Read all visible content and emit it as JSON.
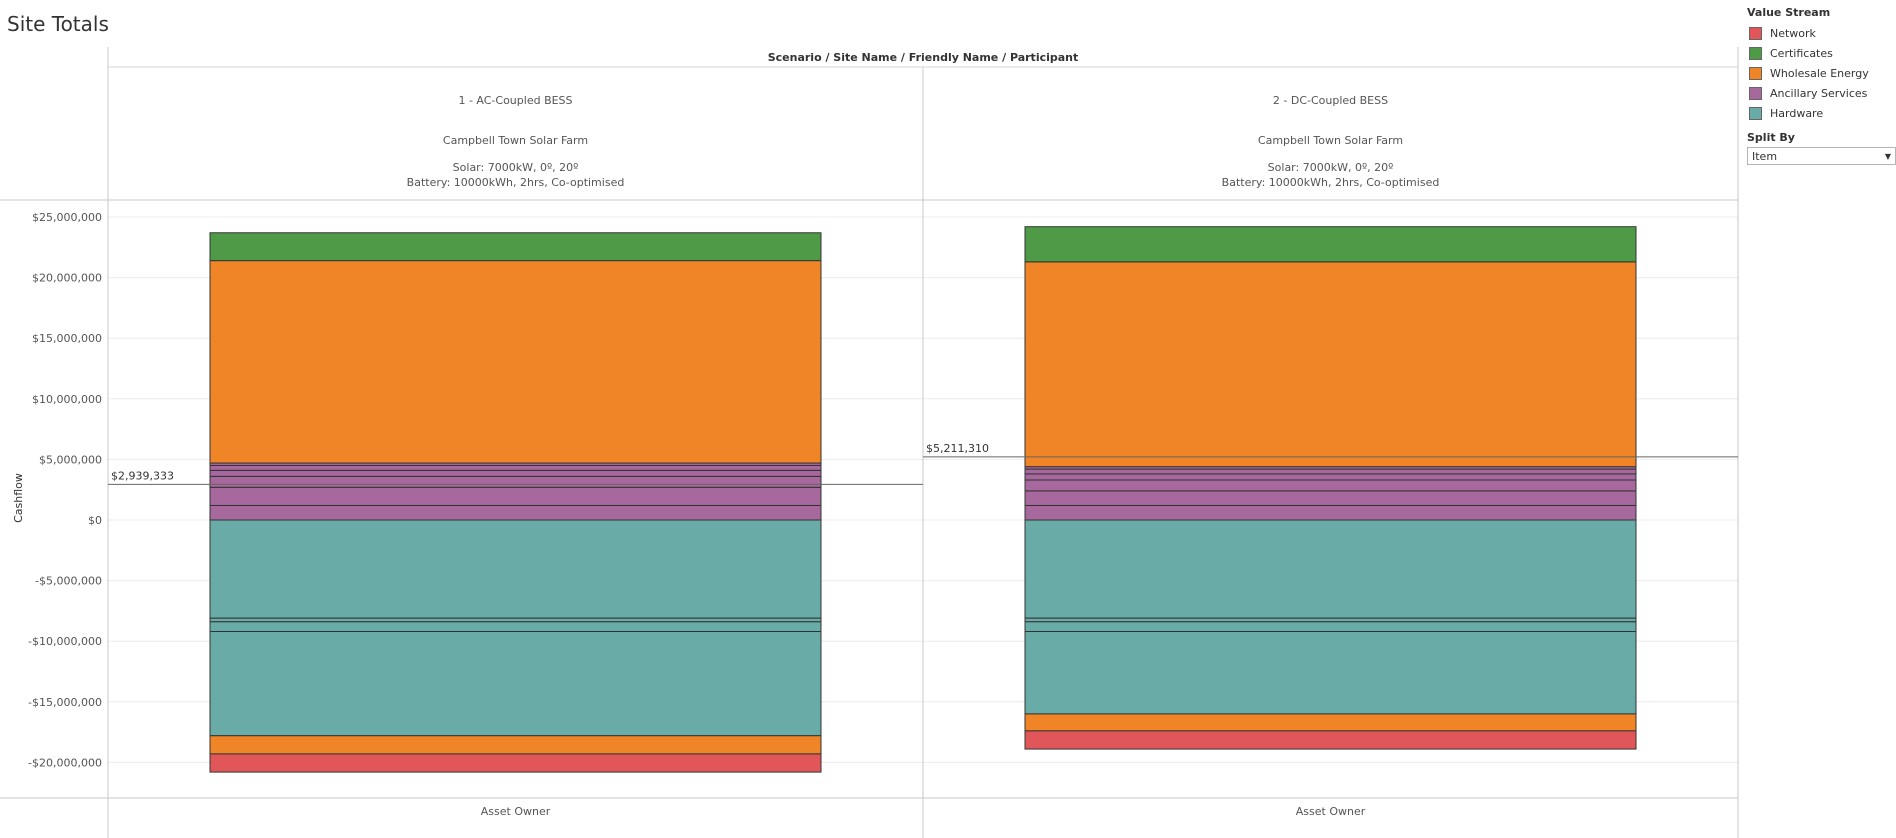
{
  "page_title": "Site Totals",
  "legend": {
    "title": "Value Stream",
    "items": [
      {
        "label": "Network",
        "color": "#e15759"
      },
      {
        "label": "Certificates",
        "color": "#4e9a47"
      },
      {
        "label": "Wholesale Energy",
        "color": "#f08527"
      },
      {
        "label": "Ancillary Services",
        "color": "#a7689e"
      },
      {
        "label": "Hardware",
        "color": "#69aca7"
      }
    ]
  },
  "split_by": {
    "label": "Split By",
    "value": "Item"
  },
  "chart_data": {
    "type": "bar",
    "stacked": true,
    "header_title": "Scenario / Site Name / Friendly Name / Participant",
    "ylabel": "Cashflow",
    "ylim": [
      -23000000,
      26000000
    ],
    "yticks": [
      25000000,
      20000000,
      15000000,
      10000000,
      5000000,
      0,
      -5000000,
      -10000000,
      -15000000,
      -20000000
    ],
    "ytick_labels": [
      "$25,000,000",
      "$20,000,000",
      "$15,000,000",
      "$10,000,000",
      "$5,000,000",
      "$0",
      "-$5,000,000",
      "-$10,000,000",
      "-$15,000,000",
      "-$20,000,000"
    ],
    "panels": [
      {
        "scenario": "1 - AC-Coupled BESS",
        "site": "Campbell Town Solar Farm",
        "friendly_line1": "Solar: 7000kW, 0º, 20º",
        "friendly_line2": "Battery: 10000kWh, 2hrs, Co-optimised",
        "participant": "Asset Owner",
        "total": 2939333,
        "total_label": "$2,939,333",
        "segments": [
          {
            "stream": "Ancillary Services",
            "start": 0,
            "end": 1200000
          },
          {
            "stream": "Ancillary Services",
            "start": 1200000,
            "end": 2700000
          },
          {
            "stream": "Ancillary Services",
            "start": 2700000,
            "end": 3600000
          },
          {
            "stream": "Ancillary Services",
            "start": 3600000,
            "end": 4100000
          },
          {
            "stream": "Ancillary Services",
            "start": 4100000,
            "end": 4500000
          },
          {
            "stream": "Ancillary Services",
            "start": 4500000,
            "end": 4700000
          },
          {
            "stream": "Wholesale Energy",
            "start": 4700000,
            "end": 21400000
          },
          {
            "stream": "Certificates",
            "start": 21400000,
            "end": 23700000
          },
          {
            "stream": "Hardware",
            "start": 0,
            "end": -8100000
          },
          {
            "stream": "Hardware",
            "start": -8100000,
            "end": -8400000
          },
          {
            "stream": "Hardware",
            "start": -8400000,
            "end": -9200000
          },
          {
            "stream": "Hardware",
            "start": -9200000,
            "end": -17800000
          },
          {
            "stream": "Wholesale Energy",
            "start": -17800000,
            "end": -19300000
          },
          {
            "stream": "Network",
            "start": -19300000,
            "end": -20800000
          }
        ]
      },
      {
        "scenario": "2 - DC-Coupled BESS",
        "site": "Campbell Town Solar Farm",
        "friendly_line1": "Solar: 7000kW, 0º, 20º",
        "friendly_line2": "Battery: 10000kWh, 2hrs, Co-optimised",
        "participant": "Asset Owner",
        "total": 5211310,
        "total_label": "$5,211,310",
        "segments": [
          {
            "stream": "Ancillary Services",
            "start": 0,
            "end": 1200000
          },
          {
            "stream": "Ancillary Services",
            "start": 1200000,
            "end": 2400000
          },
          {
            "stream": "Ancillary Services",
            "start": 2400000,
            "end": 3300000
          },
          {
            "stream": "Ancillary Services",
            "start": 3300000,
            "end": 3800000
          },
          {
            "stream": "Ancillary Services",
            "start": 3800000,
            "end": 4200000
          },
          {
            "stream": "Ancillary Services",
            "start": 4200000,
            "end": 4400000
          },
          {
            "stream": "Wholesale Energy",
            "start": 4400000,
            "end": 21300000
          },
          {
            "stream": "Certificates",
            "start": 21300000,
            "end": 24200000
          },
          {
            "stream": "Hardware",
            "start": 0,
            "end": -8100000
          },
          {
            "stream": "Hardware",
            "start": -8100000,
            "end": -8400000
          },
          {
            "stream": "Hardware",
            "start": -8400000,
            "end": -9200000
          },
          {
            "stream": "Hardware",
            "start": -9200000,
            "end": -16000000
          },
          {
            "stream": "Wholesale Energy",
            "start": -16000000,
            "end": -17400000
          },
          {
            "stream": "Network",
            "start": -17400000,
            "end": -18900000
          }
        ]
      }
    ]
  }
}
